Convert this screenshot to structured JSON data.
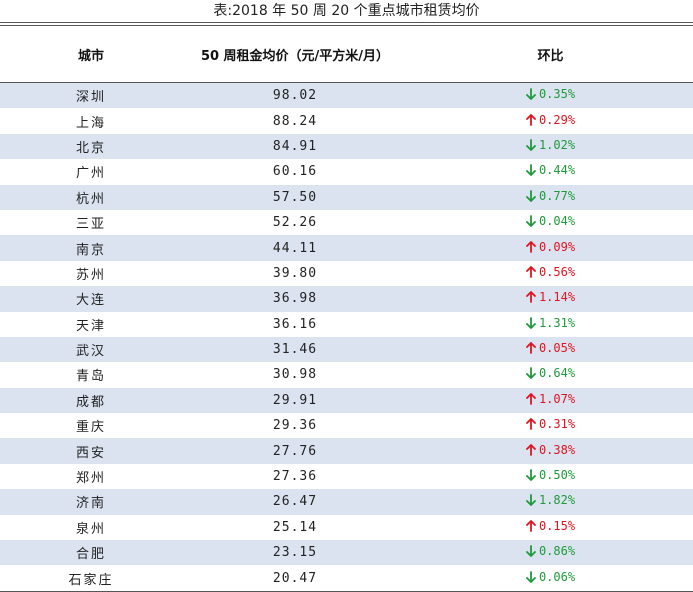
{
  "title": "表:2018 年 50 周 20 个重点城市租赁均价",
  "headers": {
    "city": "城市",
    "price": "50 周租金均价（元/平方米/月）",
    "change": "环比"
  },
  "colors": {
    "up": "#e0141e",
    "down": "#1e9a3a",
    "stripe": "#dbe3f0"
  },
  "rows": [
    {
      "city": "深圳",
      "price": "98.02",
      "change": "0.35%",
      "dir": "down"
    },
    {
      "city": "上海",
      "price": "88.24",
      "change": "0.29%",
      "dir": "up"
    },
    {
      "city": "北京",
      "price": "84.91",
      "change": "1.02%",
      "dir": "down"
    },
    {
      "city": "广州",
      "price": "60.16",
      "change": "0.44%",
      "dir": "down"
    },
    {
      "city": "杭州",
      "price": "57.50",
      "change": "0.77%",
      "dir": "down"
    },
    {
      "city": "三亚",
      "price": "52.26",
      "change": "0.04%",
      "dir": "down"
    },
    {
      "city": "南京",
      "price": "44.11",
      "change": "0.09%",
      "dir": "up"
    },
    {
      "city": "苏州",
      "price": "39.80",
      "change": "0.56%",
      "dir": "up"
    },
    {
      "city": "大连",
      "price": "36.98",
      "change": "1.14%",
      "dir": "up"
    },
    {
      "city": "天津",
      "price": "36.16",
      "change": "1.31%",
      "dir": "down"
    },
    {
      "city": "武汉",
      "price": "31.46",
      "change": "0.05%",
      "dir": "up"
    },
    {
      "city": "青岛",
      "price": "30.98",
      "change": "0.64%",
      "dir": "down"
    },
    {
      "city": "成都",
      "price": "29.91",
      "change": "1.07%",
      "dir": "up"
    },
    {
      "city": "重庆",
      "price": "29.36",
      "change": "0.31%",
      "dir": "up"
    },
    {
      "city": "西安",
      "price": "27.76",
      "change": "0.38%",
      "dir": "up"
    },
    {
      "city": "郑州",
      "price": "27.36",
      "change": "0.50%",
      "dir": "down"
    },
    {
      "city": "济南",
      "price": "26.47",
      "change": "1.82%",
      "dir": "down"
    },
    {
      "city": "泉州",
      "price": "25.14",
      "change": "0.15%",
      "dir": "up"
    },
    {
      "city": "合肥",
      "price": "23.15",
      "change": "0.86%",
      "dir": "down"
    },
    {
      "city": "石家庄",
      "price": "20.47",
      "change": "0.06%",
      "dir": "down"
    }
  ]
}
